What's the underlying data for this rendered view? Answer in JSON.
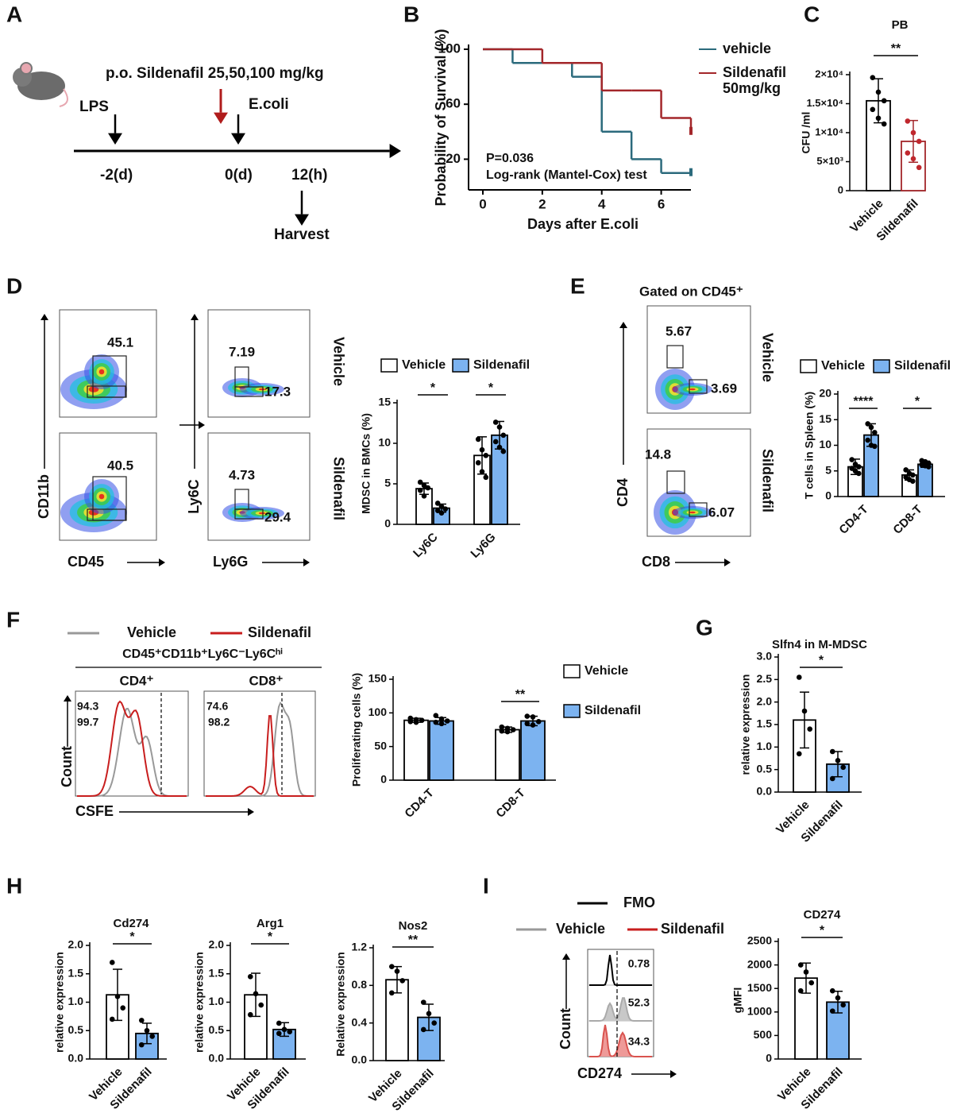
{
  "letters": [
    "A",
    "B",
    "C",
    "D",
    "E",
    "F",
    "G",
    "H",
    "I"
  ],
  "panels": {
    "A": {
      "treatment": "p.o. Sildenafil 25,50,100 mg/kg",
      "lps": "LPS",
      "ecoli": "E.coli",
      "times": [
        "-2(d)",
        "0(d)",
        "12(h)"
      ],
      "harvest": "Harvest"
    },
    "D": {
      "axes": [
        "CD11b",
        "CD45",
        "Ly6C",
        "Ly6G"
      ],
      "rows": [
        "Vehicle",
        "Sildenafil"
      ],
      "gates": [
        "45.1",
        "40.5",
        "7.19",
        "17.3",
        "4.73",
        "29.4"
      ]
    },
    "E": {
      "header": "Gated on CD45⁺",
      "axes": [
        "CD4",
        "CD8"
      ],
      "rows": [
        "Vehicle",
        "Sildenafil"
      ],
      "gates": [
        "5.67",
        "3.69",
        "14.8",
        "6.07"
      ]
    },
    "F": {
      "legend": [
        "Vehicle",
        "Sildenafil"
      ],
      "population": "CD45⁺CD11b⁺Ly6C⁻Ly6Cʰⁱ",
      "subsets": [
        "CD4⁺",
        "CD8⁺"
      ],
      "gates": [
        "94.3",
        "99.7",
        "74.6",
        "98.2"
      ],
      "axes": [
        "Count",
        "CSFE"
      ]
    },
    "I": {
      "legend": [
        "FMO",
        "Vehicle",
        "Sildenafil"
      ],
      "gates": [
        "0.78",
        "52.3",
        "34.3"
      ],
      "axes": [
        "Count",
        "CD274"
      ]
    }
  },
  "chart_data": [
    {
      "type": "step",
      "xlabel": "Days after E.coli",
      "ylabel": "Probability of Survival (%)",
      "x": [
        0,
        1,
        2,
        3,
        4,
        5,
        6,
        7
      ],
      "xlim": [
        0,
        7
      ],
      "xticks": [
        0,
        2,
        4,
        6
      ],
      "ylim": [
        0,
        100
      ],
      "yticks": [
        20,
        60,
        100
      ],
      "series": [
        {
          "name": "vehicle",
          "color": "#2b6a7c",
          "values": [
            100,
            90,
            90,
            80,
            40,
            20,
            10,
            10
          ]
        },
        {
          "name": "Sildenafil 50mg/kg",
          "color": "#a3262a",
          "values": [
            100,
            100,
            90,
            90,
            70,
            70,
            50,
            40
          ]
        }
      ],
      "annotations": [
        "P=0.036",
        "Log-rank (Mantel-Cox) test"
      ]
    },
    {
      "type": "bar",
      "title": "PB",
      "ylabel": "CFU /ml",
      "categories": [
        "Vehicle",
        "Sildenafil"
      ],
      "values": [
        15500,
        8500
      ],
      "errors": [
        3800,
        3600
      ],
      "points": [
        [
          19500,
          17000,
          15500,
          14000,
          12500,
          11500
        ],
        [
          12000,
          10000,
          8500,
          6500,
          5500,
          4000
        ]
      ],
      "bar_fill": [
        "#ffffff",
        "#ffffff"
      ],
      "bar_edge": [
        "#000000",
        "#a3262a"
      ],
      "point_color": [
        "#000000",
        "#c0272d"
      ],
      "ylim": [
        0,
        20000
      ],
      "yticks": [
        0,
        {
          "value": 5000,
          "label": "5×10³"
        },
        {
          "value": 10000,
          "label": "1×10⁴"
        },
        {
          "value": 15000,
          "label": "1.5×10⁴"
        },
        {
          "value": 20000,
          "label": "2×10⁴"
        }
      ],
      "significance": "**"
    },
    {
      "type": "bar",
      "ylabel": "MDSC in BMCs (%)",
      "categories": [
        "Ly6C",
        "Ly6G"
      ],
      "series": [
        {
          "name": "Vehicle",
          "fill": "#ffffff",
          "edge": "#000000",
          "values": [
            4.4,
            8.5
          ],
          "errors": [
            0.7,
            2.3
          ],
          "points": [
            [
              5.2,
              4.8,
              4.5,
              4.2,
              3.5
            ],
            [
              10.5,
              9.2,
              8.5,
              7.6,
              6.5,
              5.8
            ]
          ]
        },
        {
          "name": "Sildenafil",
          "fill": "#7cb3f0",
          "edge": "#000000",
          "values": [
            2.0,
            11.0
          ],
          "errors": [
            0.5,
            1.7
          ],
          "points": [
            [
              2.6,
              2.2,
              1.9,
              1.7,
              1.4
            ],
            [
              12.6,
              12.0,
              11.0,
              10.2,
              9.5,
              9.0
            ]
          ]
        }
      ],
      "ylim": [
        0,
        15
      ],
      "yticks": [
        0,
        5,
        10,
        15
      ],
      "significance": [
        "*",
        "*"
      ]
    },
    {
      "type": "bar",
      "ylabel": "T cells in Spleen (%)",
      "categories": [
        "CD4-T",
        "CD8-T"
      ],
      "series": [
        {
          "name": "Vehicle",
          "fill": "#ffffff",
          "edge": "#000000",
          "values": [
            5.8,
            4.2
          ],
          "errors": [
            1.5,
            1.0
          ],
          "points": [
            [
              7.2,
              6.3,
              5.8,
              5.5,
              5.0,
              4.5
            ],
            [
              5.2,
              4.5,
              4.2,
              3.8,
              3.3,
              3.0
            ]
          ]
        },
        {
          "name": "Sildenafil",
          "fill": "#7cb3f0",
          "edge": "#000000",
          "values": [
            12.0,
            6.3
          ],
          "errors": [
            2.2,
            0.6
          ],
          "points": [
            [
              14.2,
              13.5,
              12.5,
              11.0,
              10.0,
              9.8
            ],
            [
              7.0,
              6.8,
              6.5,
              6.2,
              6.0,
              5.8
            ]
          ]
        }
      ],
      "ylim": [
        0,
        20
      ],
      "yticks": [
        0,
        5,
        10,
        15,
        20
      ],
      "significance": [
        "****",
        "*"
      ]
    },
    {
      "type": "bar",
      "ylabel": "Proliferating cells (%)",
      "categories": [
        "CD4-T",
        "CD8-T"
      ],
      "series": [
        {
          "name": "Vehicle",
          "fill": "#ffffff",
          "edge": "#000000",
          "values": [
            89,
            75
          ],
          "errors": [
            3,
            4
          ],
          "points": [
            [
              92,
              90,
              89,
              87,
              86
            ],
            [
              79,
              77,
              75,
              73,
              72
            ]
          ]
        },
        {
          "name": "Sildenafil",
          "fill": "#7cb3f0",
          "edge": "#000000",
          "values": [
            88,
            88
          ],
          "errors": [
            5,
            7
          ],
          "points": [
            [
              96,
              91,
              88,
              86,
              84
            ],
            [
              95,
              94,
              87,
              84,
              82
            ]
          ]
        }
      ],
      "ylim": [
        0,
        150
      ],
      "yticks": [
        0,
        50,
        100,
        150
      ],
      "significance": [
        null,
        "**"
      ]
    },
    {
      "type": "bar",
      "title": "Slfn4 in M-MDSC",
      "ylabel": "relative expression",
      "categories": [
        "Vehicle",
        "Sildenafil"
      ],
      "values": [
        1.6,
        0.62
      ],
      "errors": [
        0.62,
        0.28
      ],
      "points": [
        [
          2.55,
          1.8,
          1.4,
          0.85
        ],
        [
          0.9,
          0.7,
          0.55,
          0.3
        ]
      ],
      "bar_fill": [
        "#ffffff",
        "#7cb3f0"
      ],
      "bar_edge": [
        "#000000",
        "#000000"
      ],
      "point_color": [
        "#000000",
        "#000000"
      ],
      "ylim": [
        0,
        3
      ],
      "yticks": [
        {
          "value": 0,
          "label": "0.0"
        },
        0.5,
        {
          "value": 1,
          "label": "1.0"
        },
        1.5,
        {
          "value": 2,
          "label": "2.0"
        },
        2.5,
        {
          "value": 3,
          "label": "3.0"
        }
      ],
      "significance": "*"
    },
    {
      "type": "bar",
      "title": "Cd274",
      "ylabel": "relative expression",
      "categories": [
        "Vehicle",
        "Sildenafil"
      ],
      "values": [
        1.13,
        0.45
      ],
      "errors": [
        0.45,
        0.18
      ],
      "points": [
        [
          1.7,
          1.1,
          0.9,
          0.7
        ],
        [
          0.68,
          0.5,
          0.4,
          0.25
        ]
      ],
      "bar_fill": [
        "#ffffff",
        "#7cb3f0"
      ],
      "bar_edge": [
        "#000000",
        "#000000"
      ],
      "point_color": [
        "#000000",
        "#000000"
      ],
      "ylim": [
        0,
        2
      ],
      "yticks": [
        {
          "value": 0,
          "label": "0.0"
        },
        0.5,
        {
          "value": 1,
          "label": "1.0"
        },
        1.5,
        {
          "value": 2,
          "label": "2.0"
        }
      ],
      "significance": "*"
    },
    {
      "type": "bar",
      "title": "Arg1",
      "ylabel": "relative expression",
      "categories": [
        "Vehicle",
        "Sildenafil"
      ],
      "values": [
        1.13,
        0.52
      ],
      "errors": [
        0.38,
        0.12
      ],
      "points": [
        [
          1.45,
          1.15,
          0.95,
          0.78
        ],
        [
          0.63,
          0.52,
          0.48,
          0.45
        ]
      ],
      "bar_fill": [
        "#ffffff",
        "#7cb3f0"
      ],
      "bar_edge": [
        "#000000",
        "#000000"
      ],
      "point_color": [
        "#000000",
        "#000000"
      ],
      "ylim": [
        0,
        2
      ],
      "yticks": [
        {
          "value": 0,
          "label": "0.0"
        },
        0.5,
        {
          "value": 1,
          "label": "1.0"
        },
        1.5,
        {
          "value": 2,
          "label": "2.0"
        }
      ],
      "significance": "*"
    },
    {
      "type": "bar",
      "title": "Nos2",
      "ylabel": "Relative expression",
      "categories": [
        "Vehicle",
        "Sildenafil"
      ],
      "values": [
        0.86,
        0.46
      ],
      "errors": [
        0.14,
        0.14
      ],
      "points": [
        [
          1.0,
          0.95,
          0.85,
          0.72
        ],
        [
          0.62,
          0.5,
          0.4,
          0.33
        ]
      ],
      "bar_fill": [
        "#ffffff",
        "#7cb3f0"
      ],
      "bar_edge": [
        "#000000",
        "#000000"
      ],
      "point_color": [
        "#000000",
        "#000000"
      ],
      "ylim": [
        0,
        1.2
      ],
      "yticks": [
        {
          "value": 0,
          "label": "0.0"
        },
        0.4,
        0.8,
        1.2
      ],
      "significance": "**"
    },
    {
      "type": "bar",
      "title": "CD274",
      "ylabel": "gMFI",
      "categories": [
        "Vehicle",
        "Sildenafil"
      ],
      "values": [
        1720,
        1210
      ],
      "errors": [
        320,
        230
      ],
      "points": [
        [
          2000,
          1850,
          1620,
          1450
        ],
        [
          1450,
          1300,
          1150,
          1020
        ]
      ],
      "bar_fill": [
        "#ffffff",
        "#7cb3f0"
      ],
      "bar_edge": [
        "#000000",
        "#000000"
      ],
      "point_color": [
        "#000000",
        "#000000"
      ],
      "ylim": [
        0,
        2500
      ],
      "yticks": [
        0,
        500,
        1000,
        1500,
        2000,
        2500
      ],
      "significance": "*"
    }
  ]
}
